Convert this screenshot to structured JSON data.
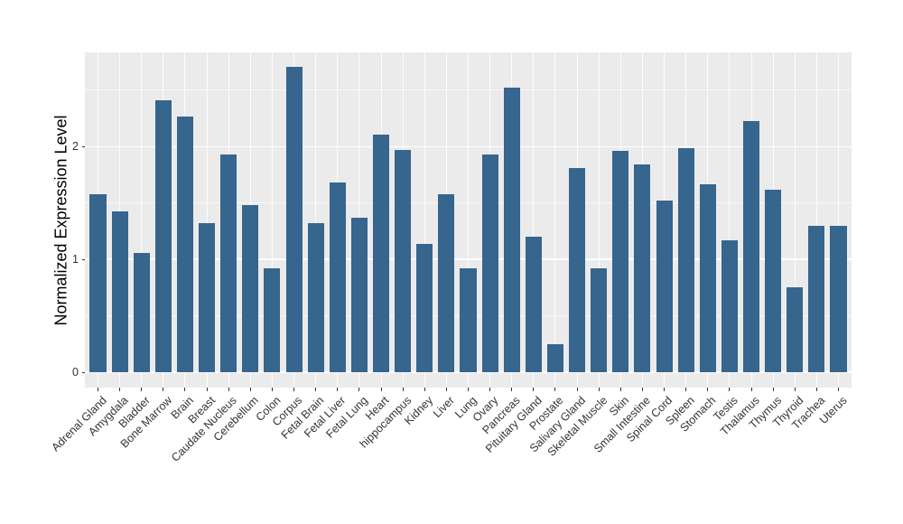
{
  "chart_data": {
    "type": "bar",
    "title": "",
    "xlabel": "",
    "ylabel": "Normalized Expression Level",
    "categories": [
      "Adrenal Gland",
      "Amygdala",
      "Bladder",
      "Bone Marrow",
      "Brain",
      "Breast",
      "Caudate Nucleus",
      "Cerebellum",
      "Colon",
      "Corpus",
      "Fetal Brain",
      "Fetal Liver",
      "Fetal Lung",
      "Heart",
      "hippocampus",
      "Kidney",
      "Liver",
      "Lung",
      "Ovary",
      "Pancreas",
      "Pituitary Gland",
      "Prostate",
      "Salivary Gland",
      "Skeletal Muscle",
      "Skin",
      "Small Intestine",
      "Spinal Cord",
      "Spleen",
      "Stomach",
      "Testis",
      "Thalamus",
      "Thymus",
      "Thyroid",
      "Trachea",
      "Uterus"
    ],
    "values": [
      1.58,
      1.43,
      1.06,
      2.41,
      2.27,
      1.32,
      1.93,
      1.48,
      0.92,
      2.71,
      1.32,
      1.68,
      1.37,
      2.11,
      1.97,
      1.14,
      1.58,
      0.92,
      1.93,
      2.52,
      1.2,
      0.25,
      1.81,
      0.92,
      1.96,
      1.84,
      1.52,
      1.99,
      1.67,
      1.17,
      2.23,
      1.62,
      0.75,
      1.3,
      1.3
    ],
    "yticks": [
      0,
      1,
      2
    ],
    "yminor": [
      0.5,
      1.5,
      2.5
    ],
    "ylim": [
      -0.135,
      2.835
    ],
    "x_label_angle_deg": 45,
    "grid": "on",
    "legend": "none",
    "colors": {
      "bar_fill": "#36658D",
      "panel_background": "#EBEBEB",
      "grid_line": "#FFFFFF",
      "axis_text": "#333333",
      "axis_title": "#000000",
      "figure_background": "#FFFFFF"
    }
  }
}
